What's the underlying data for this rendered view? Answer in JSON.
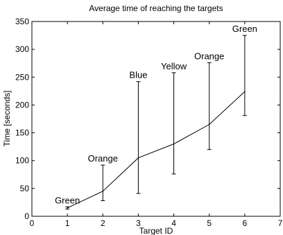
{
  "chart_data": {
    "type": "line",
    "title": "Average time of reaching the targets",
    "xlabel": "Target ID",
    "ylabel": "Time [seconds]",
    "xlim": [
      0,
      7
    ],
    "ylim": [
      0,
      350
    ],
    "xticks": [
      0,
      1,
      2,
      3,
      4,
      5,
      6,
      7
    ],
    "yticks": [
      0,
      50,
      100,
      150,
      200,
      250,
      300,
      350
    ],
    "grid": false,
    "series": [
      {
        "x": [
          1,
          2,
          3,
          4,
          5,
          6
        ],
        "y": [
          15,
          45,
          105,
          130,
          165,
          224
        ],
        "err_low": [
          13,
          28,
          41,
          76,
          120,
          181
        ],
        "err_high": [
          17,
          92,
          242,
          258,
          276,
          325
        ],
        "labels": [
          "Green",
          "Orange",
          "Blue",
          "Yellow",
          "Orange",
          "Green"
        ]
      }
    ]
  }
}
